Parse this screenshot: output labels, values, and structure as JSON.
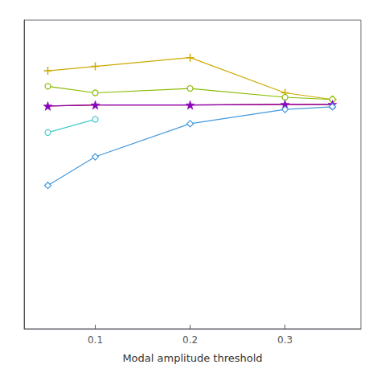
{
  "chart_data": {
    "type": "line",
    "xlabel": "Modal amplitude threshold",
    "xlim": [
      0.025,
      0.38
    ],
    "xticks": [
      0.1,
      0.2,
      0.3
    ],
    "ylim": [
      -0.35,
      1.05
    ],
    "yticks": [],
    "tick_labels": "x",
    "grid": false,
    "series": [
      {
        "color": "#ccaa00",
        "marker": "plus",
        "x": [
          0.05,
          0.1,
          0.2,
          0.3,
          0.35
        ],
        "values": [
          0.82,
          0.84,
          0.88,
          0.72,
          0.69
        ]
      },
      {
        "color": "#88bb00",
        "marker": "circle",
        "x": [
          0.05,
          0.1,
          0.2,
          0.3,
          0.35
        ],
        "values": [
          0.75,
          0.72,
          0.74,
          0.7,
          0.69
        ]
      },
      {
        "color": "#cc2200",
        "marker": "none",
        "x": [
          0.05,
          0.1,
          0.2,
          0.3,
          0.35
        ],
        "values": [
          0.66,
          0.665,
          0.665,
          0.668,
          0.668
        ]
      },
      {
        "color": "#8800bb",
        "marker": "star",
        "x": [
          0.05,
          0.1,
          0.2,
          0.3,
          0.35
        ],
        "values": [
          0.66,
          0.665,
          0.665,
          0.668,
          0.668
        ]
      },
      {
        "color": "#44cccc",
        "marker": "circle",
        "x": [
          0.05,
          0.1
        ],
        "values": [
          0.54,
          0.6
        ]
      },
      {
        "color": "#4499dd",
        "marker": "diamond",
        "x": [
          0.05,
          0.1,
          0.2,
          0.3,
          0.35
        ],
        "values": [
          0.3,
          0.43,
          0.58,
          0.645,
          0.657
        ]
      }
    ]
  }
}
